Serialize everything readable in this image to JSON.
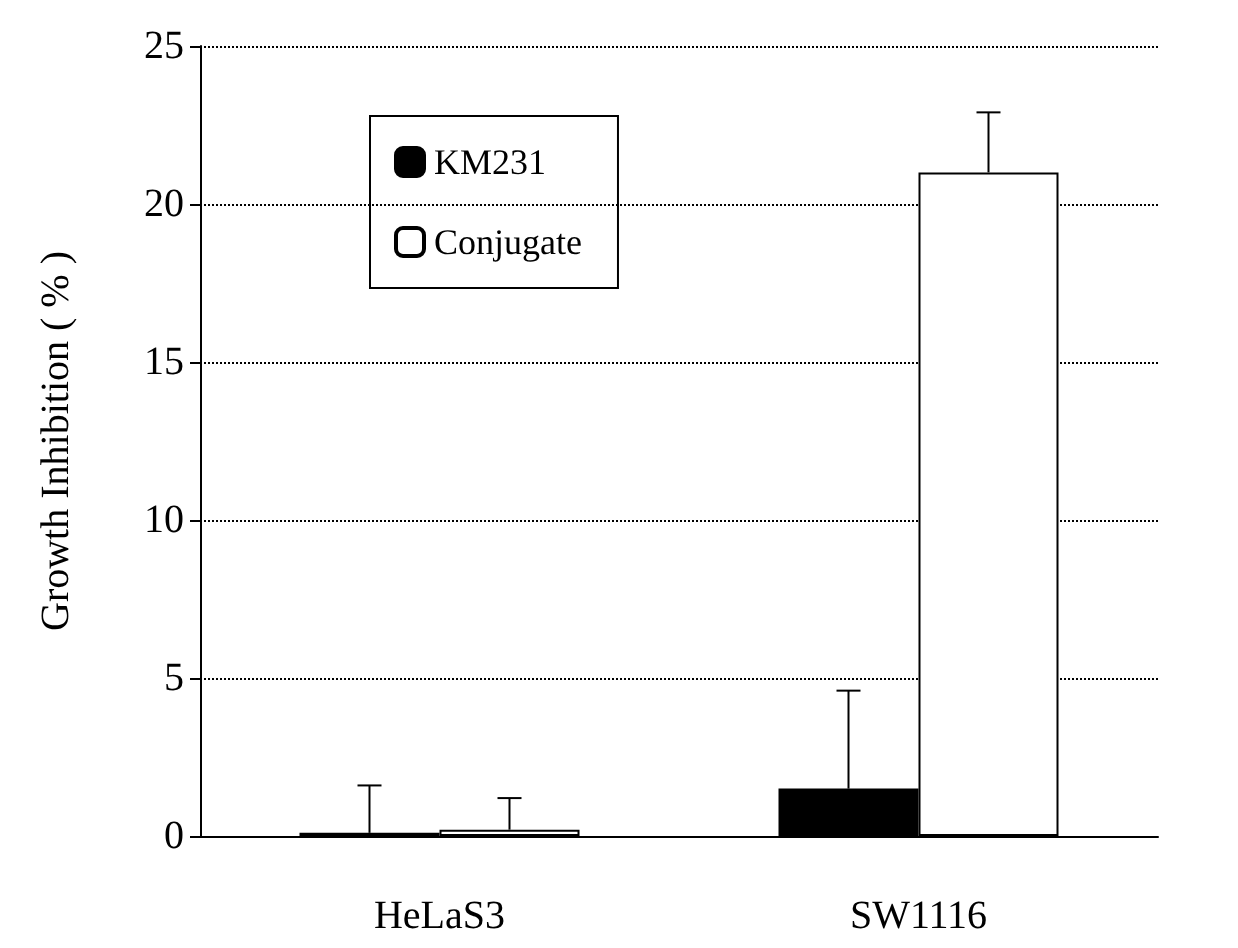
{
  "chart_data": {
    "type": "bar",
    "ylabel": "Growth Inhibition ( % )",
    "categories": [
      "HeLaS3",
      "SW1116"
    ],
    "series": [
      {
        "name": "KM231",
        "color": "#000000",
        "values": [
          0.1,
          1.5
        ],
        "errors": [
          [
            0.1,
            1.6
          ],
          [
            1.5,
            4.6
          ]
        ]
      },
      {
        "name": "Conjugate",
        "color": "#ffffff",
        "values": [
          0.2,
          21
        ],
        "errors": [
          [
            0.2,
            1.2
          ],
          [
            21,
            22.9
          ]
        ]
      }
    ],
    "ylim": [
      0,
      25
    ],
    "yticks": [
      0,
      5,
      10,
      15,
      20,
      25
    ],
    "grid": "y",
    "legend": "top left"
  }
}
